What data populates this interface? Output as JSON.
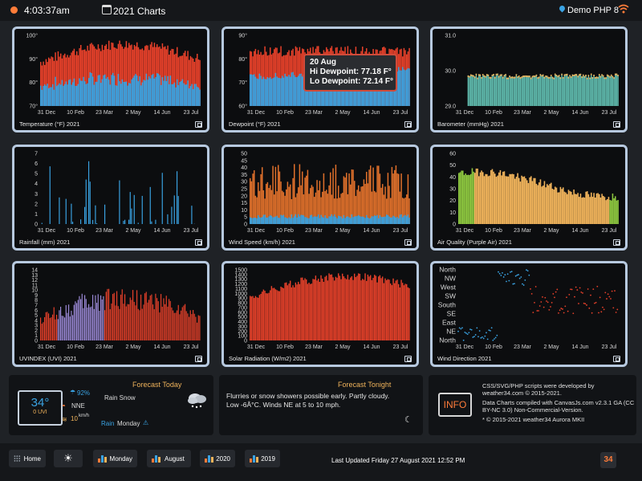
{
  "topbar": {
    "time": "4:03:37am",
    "title": "2021 Charts",
    "location": "Demo PHP 8"
  },
  "x_ticks": [
    "31 Dec",
    "10 Feb",
    "23 Mar",
    "2 May",
    "14 Jun",
    "23 Jul"
  ],
  "panels": [
    {
      "label": "Temperature (°F) 2021",
      "y_ticks": [
        "100°",
        "90°",
        "80°",
        "70°"
      ]
    },
    {
      "label": "Dewpoint (°F) 2021",
      "y_ticks": [
        "90°",
        "80°",
        "70°",
        "60°"
      ]
    },
    {
      "label": "Barometer (mmHg) 2021",
      "y_ticks": [
        "31.0",
        "30.0",
        "29.0"
      ]
    },
    {
      "label": "Rainfall (mm) 2021",
      "y_ticks": [
        "7",
        "6",
        "5",
        "4",
        "3",
        "2",
        "1",
        "0"
      ]
    },
    {
      "label": "Wind Speed (km/h) 2021",
      "y_ticks": [
        "50",
        "45",
        "40",
        "35",
        "30",
        "25",
        "20",
        "15",
        "10",
        "5",
        "0"
      ]
    },
    {
      "label": "Air Quality (Purple Air) 2021",
      "y_ticks": [
        "60",
        "50",
        "40",
        "30",
        "20",
        "10",
        "0"
      ]
    },
    {
      "label": "UVINDEX (UVI) 2021",
      "y_ticks": [
        "14",
        "13",
        "12",
        "11",
        "10",
        "9",
        "8",
        "7",
        "6",
        "5",
        "4",
        "3",
        "2",
        "1",
        "0"
      ]
    },
    {
      "label": "Solar Radiation (W/m2) 2021",
      "y_ticks": [
        "1500",
        "1400",
        "1300",
        "1200",
        "1100",
        "1000",
        "900",
        "800",
        "700",
        "600",
        "500",
        "400",
        "300",
        "200",
        "100",
        "0"
      ]
    },
    {
      "label": "Wind Direction 2021",
      "y_ticks": [
        "North",
        "NW",
        "West",
        "SW",
        "South",
        "SE",
        "East",
        "NE",
        "North"
      ]
    }
  ],
  "tooltip": {
    "date": "20 Aug",
    "hi": "Hi Dewpoint:",
    "hi_value": "77.18 F°",
    "lo": "Lo Dewpoint:",
    "lo_value": "72.14 F°"
  },
  "forecast_today": {
    "title": "Forecast Today",
    "temp": "34°",
    "uvi": "0 UVI",
    "humidity": "92%",
    "wind_dir": "NNE",
    "wind_speed": "10",
    "wind_unit": "km/h",
    "condition": "Rain Snow",
    "rain": "Rain",
    "day": "Monday"
  },
  "forecast_tonight": {
    "title": "Forecast Tonight",
    "text": "Flurries or snow showers possible early. Partly cloudy. Low -6Â°C. Winds NE at 5 to 10 mph."
  },
  "info": {
    "button": "INFO",
    "line1": "CSS/SVG/PHP scripts were developed by weather34.com © 2015-2021.",
    "line2": "Data Charts compiled with CanvasJs.com v2.3.1 GA (CC BY-NC 3.0) Non-Commercial-Version.",
    "line3": "* © 2015-2021 weather34 Aurora MKII"
  },
  "footer": {
    "home": "Home",
    "monday": "Monday",
    "august": "August",
    "y2020": "2020",
    "y2019": "2019",
    "updated": "Last Updated Friday 27 August 2021 12:52 PM",
    "logo": "34"
  },
  "colors": {
    "orange": "#ff7c39",
    "blue": "#3aa3e3",
    "red": "#e8412a",
    "teal": "#5fb9ac",
    "panel_border": "#b7c9df"
  }
}
